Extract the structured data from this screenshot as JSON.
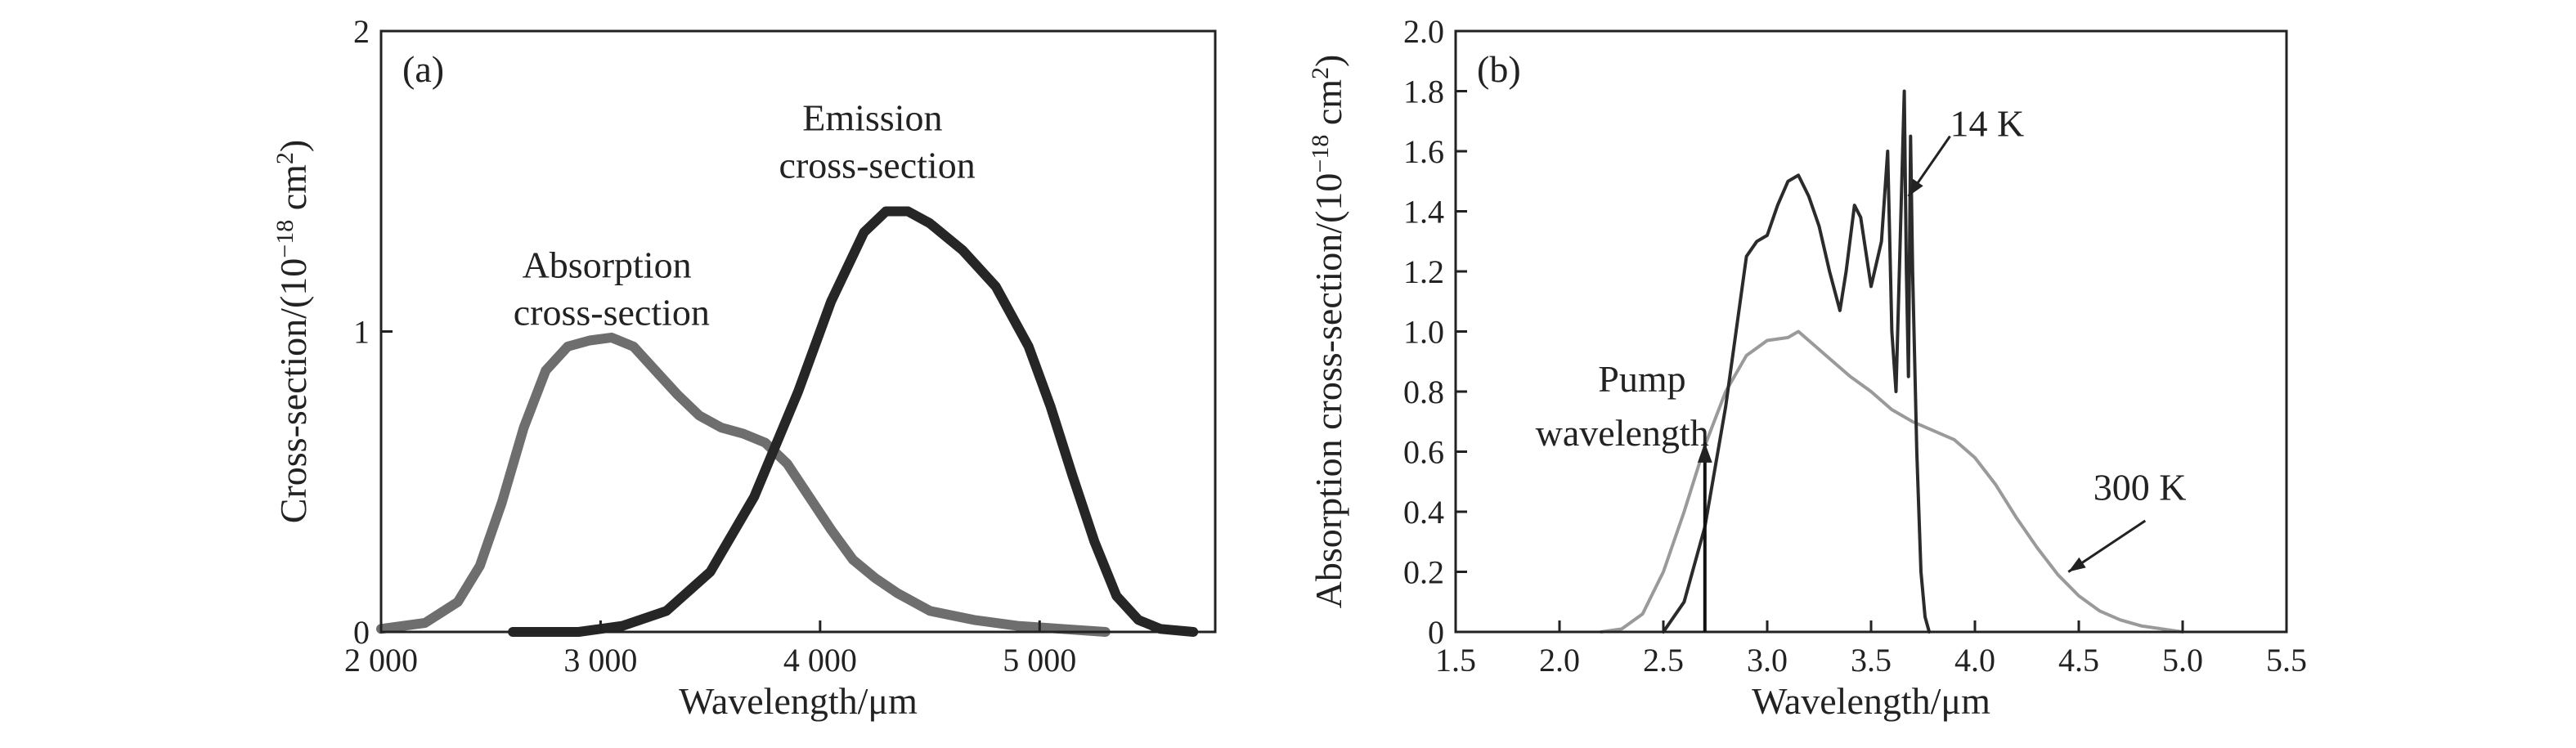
{
  "colors": {
    "absorption_a": "#6e6e6e",
    "emission_a": "#262626",
    "k14": "#2b2b2b",
    "k300": "#9a9a9a",
    "axis": "#222222"
  },
  "chart_data": [
    {
      "type": "line",
      "panel": "(a)",
      "xlabel": "Wavelength/μm",
      "ylabel_main": "Cross-section/(10",
      "ylabel_sup": "−18",
      "ylabel_tail": " cm",
      "ylabel_sup2": "2",
      "ylabel_end": ")",
      "xlim": [
        2000,
        5800
      ],
      "ylim": [
        0,
        2
      ],
      "xticks": [
        2000,
        3000,
        4000,
        5000
      ],
      "xtick_labels": [
        "2 000",
        "3 000",
        "4 000",
        "5 000"
      ],
      "yticks": [
        0,
        1,
        2
      ],
      "ytick_labels": [
        "0",
        "1",
        "2"
      ],
      "grid": false,
      "annotations": [
        {
          "id": "absorption",
          "lines": [
            "Absorption",
            "cross-section"
          ]
        },
        {
          "id": "emission",
          "lines": [
            "Emission",
            "cross-section"
          ]
        }
      ],
      "series": [
        {
          "id": "absorption",
          "color": "#6e6e6e",
          "x": [
            2000,
            2200,
            2350,
            2450,
            2550,
            2650,
            2750,
            2850,
            2950,
            3050,
            3150,
            3250,
            3350,
            3450,
            3550,
            3650,
            3750,
            3850,
            3950,
            4050,
            4150,
            4250,
            4350,
            4500,
            4700,
            4900,
            5100,
            5300
          ],
          "y": [
            0.01,
            0.03,
            0.1,
            0.22,
            0.43,
            0.68,
            0.87,
            0.95,
            0.97,
            0.98,
            0.95,
            0.87,
            0.79,
            0.72,
            0.68,
            0.66,
            0.63,
            0.56,
            0.45,
            0.34,
            0.24,
            0.18,
            0.13,
            0.07,
            0.04,
            0.02,
            0.01,
            0.0
          ]
        },
        {
          "id": "emission",
          "color": "#262626",
          "x": [
            2600,
            2900,
            3100,
            3300,
            3500,
            3700,
            3900,
            4050,
            4200,
            4300,
            4400,
            4500,
            4650,
            4800,
            4950,
            5050,
            5150,
            5250,
            5350,
            5450,
            5550,
            5700
          ],
          "y": [
            0.0,
            0.0,
            0.02,
            0.07,
            0.2,
            0.45,
            0.8,
            1.1,
            1.33,
            1.4,
            1.4,
            1.36,
            1.27,
            1.15,
            0.95,
            0.75,
            0.52,
            0.3,
            0.12,
            0.04,
            0.01,
            0.0
          ]
        }
      ]
    },
    {
      "type": "line",
      "panel": "(b)",
      "xlabel": "Wavelength/μm",
      "ylabel_main": "Absorption cross-section/(10",
      "ylabel_sup": "−18",
      "ylabel_tail": " cm",
      "ylabel_sup2": "2",
      "ylabel_end": ")",
      "xlim": [
        1.5,
        5.5
      ],
      "ylim": [
        0,
        2.0
      ],
      "xticks": [
        1.5,
        2.0,
        2.5,
        3.0,
        3.5,
        4.0,
        4.5,
        5.0,
        5.5
      ],
      "xtick_labels": [
        "1.5",
        "2.0",
        "2.5",
        "3.0",
        "3.5",
        "4.0",
        "4.5",
        "5.0",
        "5.5"
      ],
      "yticks": [
        0,
        0.2,
        0.4,
        0.6,
        0.8,
        1.0,
        1.2,
        1.4,
        1.6,
        1.8,
        2.0
      ],
      "ytick_labels": [
        "0",
        "0.2",
        "0.4",
        "0.6",
        "0.8",
        "1.0",
        "1.2",
        "1.4",
        "1.6",
        "1.8",
        "2.0"
      ],
      "grid": false,
      "annotations": [
        {
          "id": "k14",
          "lines": [
            "14 K"
          ]
        },
        {
          "id": "k300",
          "lines": [
            "300 K"
          ]
        },
        {
          "id": "pump",
          "lines": [
            "Pump",
            "wavelength"
          ],
          "x": 2.7
        }
      ],
      "series": [
        {
          "id": "k300",
          "name": "300 K",
          "color": "#9a9a9a",
          "x": [
            2.2,
            2.3,
            2.4,
            2.5,
            2.6,
            2.7,
            2.8,
            2.9,
            3.0,
            3.1,
            3.15,
            3.2,
            3.3,
            3.4,
            3.5,
            3.6,
            3.7,
            3.8,
            3.9,
            4.0,
            4.1,
            4.2,
            4.3,
            4.4,
            4.5,
            4.6,
            4.7,
            4.8,
            4.9,
            5.0
          ],
          "y": [
            0.0,
            0.01,
            0.06,
            0.2,
            0.4,
            0.62,
            0.8,
            0.92,
            0.97,
            0.98,
            1.0,
            0.97,
            0.91,
            0.85,
            0.8,
            0.74,
            0.7,
            0.67,
            0.64,
            0.58,
            0.49,
            0.38,
            0.28,
            0.19,
            0.12,
            0.07,
            0.04,
            0.02,
            0.01,
            0.0
          ]
        },
        {
          "id": "k14",
          "name": "14 K",
          "color": "#2b2b2b",
          "x": [
            2.5,
            2.6,
            2.7,
            2.8,
            2.85,
            2.9,
            2.95,
            3.0,
            3.05,
            3.1,
            3.15,
            3.2,
            3.25,
            3.3,
            3.35,
            3.38,
            3.42,
            3.45,
            3.5,
            3.55,
            3.58,
            3.6,
            3.62,
            3.64,
            3.66,
            3.67,
            3.68,
            3.69,
            3.7,
            3.72,
            3.74,
            3.76,
            3.78
          ],
          "y": [
            0.0,
            0.1,
            0.35,
            0.75,
            1.0,
            1.25,
            1.3,
            1.32,
            1.42,
            1.5,
            1.52,
            1.45,
            1.35,
            1.2,
            1.07,
            1.2,
            1.42,
            1.38,
            1.15,
            1.3,
            1.6,
            1.0,
            0.8,
            1.3,
            1.8,
            1.2,
            0.85,
            1.65,
            1.2,
            0.6,
            0.2,
            0.05,
            0.0
          ]
        }
      ]
    }
  ]
}
